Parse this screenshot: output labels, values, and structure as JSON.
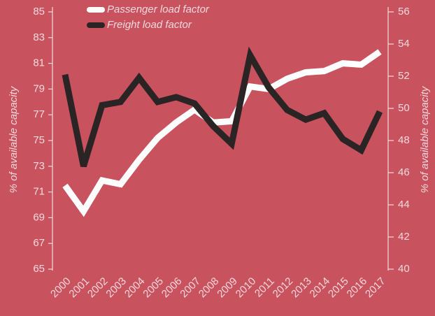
{
  "chart_data": {
    "type": "line",
    "categories": [
      "2000",
      "2001",
      "2002",
      "2003",
      "2004",
      "2005",
      "2006",
      "2007",
      "2008",
      "2009",
      "2010",
      "2011",
      "2012",
      "2013",
      "2014",
      "2015",
      "2016",
      "2017"
    ],
    "series": [
      {
        "name": "Passenger load factor",
        "color": "#ffffff",
        "axis": "y",
        "values": [
          71.5,
          69.5,
          71.9,
          71.6,
          73.5,
          75.2,
          76.4,
          77.4,
          76.4,
          76.5,
          79.2,
          79.0,
          79.8,
          80.3,
          80.4,
          81.0,
          80.9,
          81.9
        ]
      },
      {
        "name": "Freight load factor",
        "color": "#2a2425",
        "axis": "y2",
        "values": [
          52.1,
          46.4,
          50.2,
          50.4,
          51.9,
          50.4,
          50.7,
          50.3,
          48.9,
          47.8,
          53.3,
          51.3,
          49.9,
          49.3,
          49.7,
          48.1,
          47.4,
          49.8
        ]
      }
    ],
    "ylim": [
      65,
      85
    ],
    "yticks": [
      65,
      67,
      69,
      71,
      73,
      75,
      77,
      79,
      81,
      83,
      85
    ],
    "y2lim": [
      40,
      56
    ],
    "y2ticks": [
      40,
      42,
      44,
      46,
      48,
      50,
      52,
      54,
      56
    ],
    "y_label": "% of available capacity",
    "y2_label": "% of available capacity",
    "legend": "top"
  }
}
